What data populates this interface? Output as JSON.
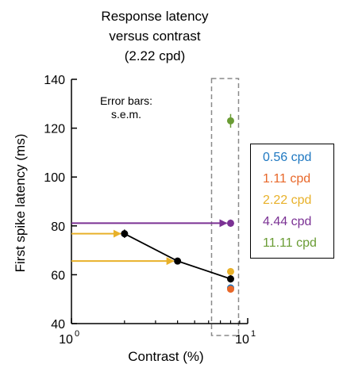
{
  "title_lines": [
    "Response latency",
    "versus contrast",
    "(2.22 cpd)"
  ],
  "annotation_lines": [
    "Error bars:",
    "s.e.m."
  ],
  "chart_data": {
    "type": "scatter",
    "x_scale": "log",
    "xlabel": "Contrast (%)",
    "ylabel": "First spike latency (ms)",
    "xlim": [
      1,
      10
    ],
    "ylim": [
      40,
      140
    ],
    "yticks": [
      40,
      60,
      80,
      100,
      120,
      140
    ],
    "x_tick_labels": [
      "10",
      "10"
    ],
    "x_tick_exponents": [
      "0",
      "1"
    ],
    "grid": false,
    "legend_position": "right",
    "series": [
      {
        "name": "2.22 cpd",
        "color": "#000000",
        "x": [
          2,
          4,
          8
        ],
        "y": [
          76.8,
          65.6,
          58.3
        ],
        "err": [
          1.7,
          1.3,
          1.5
        ]
      },
      {
        "name": "0.56 cpd",
        "color": "#1f78c1",
        "x": [
          8
        ],
        "y": [
          54.6
        ],
        "err": [
          1.0
        ]
      },
      {
        "name": "1.11 cpd",
        "color": "#e8682a",
        "x": [
          8
        ],
        "y": [
          54.1
        ],
        "err": [
          1.0
        ]
      },
      {
        "name": "2.22 cpd",
        "color": "#e8b12a",
        "x": [
          8
        ],
        "y": [
          61.3
        ],
        "err": [
          1.0
        ]
      },
      {
        "name": "4.44 cpd",
        "color": "#7b3294",
        "x": [
          8
        ],
        "y": [
          81.1
        ],
        "err": [
          1.5
        ]
      },
      {
        "name": "11.11 cpd",
        "color": "#6a9c34",
        "x": [
          8
        ],
        "y": [
          123.0
        ],
        "err": [
          2.8
        ]
      }
    ],
    "legend": [
      {
        "label": "0.56 cpd",
        "color": "#1f78c1"
      },
      {
        "label": "1.11 cpd",
        "color": "#e8682a"
      },
      {
        "label": "2.22 cpd",
        "color": "#e8b12a"
      },
      {
        "label": "4.44 cpd",
        "color": "#7b3294"
      },
      {
        "label": "11.11 cpd",
        "color": "#6a9c34"
      }
    ],
    "arrows": [
      {
        "color": "#e8b12a",
        "y": 76.8,
        "to_x": 2
      },
      {
        "color": "#e8b12a",
        "y": 65.6,
        "to_x": 4
      },
      {
        "color": "#7b3294",
        "y": 81.1,
        "to_x": 8
      }
    ]
  }
}
